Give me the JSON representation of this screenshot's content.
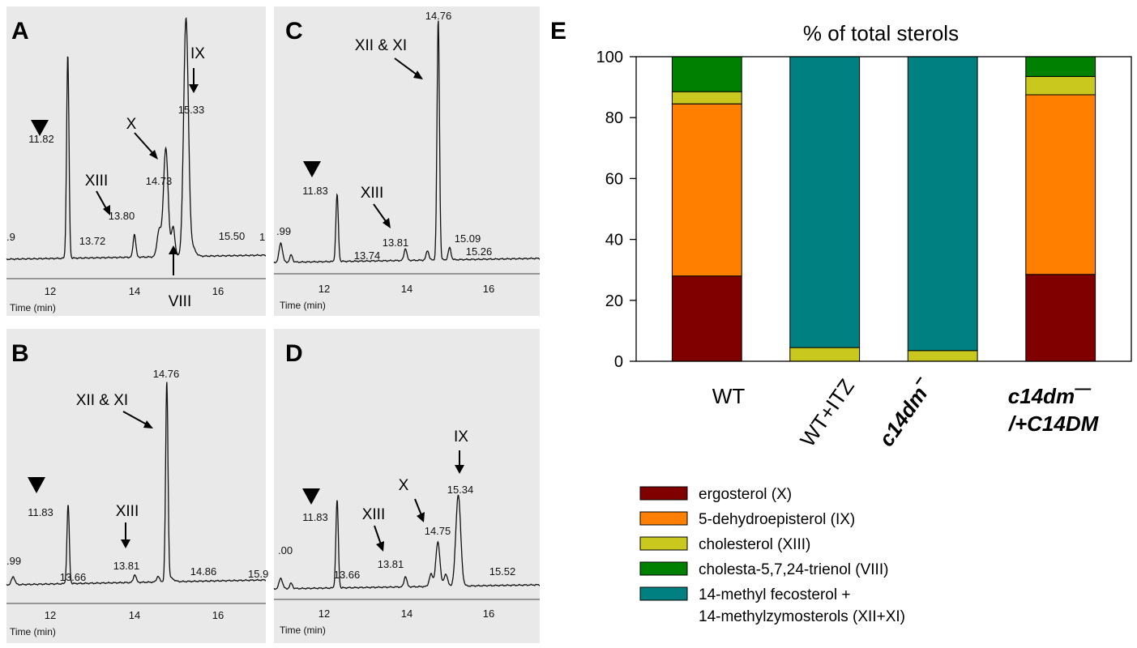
{
  "chart_data": [
    {
      "type": "line",
      "panel": "A",
      "xlabel": "Time (min)",
      "x_ticks": [
        "12",
        "14",
        "16"
      ],
      "xlim": [
        10.0,
        17.7
      ],
      "x_left_cut_label": ".9",
      "x_right_cut_label": "1",
      "peaks": [
        {
          "rt": 11.82,
          "h": 0.62,
          "w": 0.035
        },
        {
          "rt": 13.8,
          "h": 0.07,
          "w": 0.04
        },
        {
          "rt": 14.53,
          "h": 0.08,
          "w": 0.06
        },
        {
          "rt": 14.73,
          "h": 0.33,
          "w": 0.07
        },
        {
          "rt": 14.95,
          "h": 0.09,
          "w": 0.05
        },
        {
          "rt": 15.33,
          "h": 0.72,
          "w": 0.07
        },
        {
          "rt": 15.5,
          "h": 0.03,
          "w": 0.1
        }
      ],
      "peak_labels": [
        "11.82",
        "13.72",
        "13.80",
        "14.73",
        "15.33",
        "15.50"
      ],
      "annotations": [
        "XIII",
        "X",
        "IX",
        "VIII"
      ]
    },
    {
      "type": "line",
      "panel": "B",
      "xlabel": "Time (min)",
      "x_ticks": [
        "12",
        "14",
        "16"
      ],
      "xlim": [
        10.0,
        17.7
      ],
      "x_left_cut_label": ".99",
      "x_right_cut_label": "15.9",
      "peaks": [
        {
          "rt": 10.2,
          "h": 0.04,
          "w": 0.05
        },
        {
          "rt": 11.83,
          "h": 0.4,
          "w": 0.035
        },
        {
          "rt": 13.81,
          "h": 0.04,
          "w": 0.04
        },
        {
          "rt": 14.5,
          "h": 0.03,
          "w": 0.04
        },
        {
          "rt": 14.76,
          "h": 1.0,
          "w": 0.035
        },
        {
          "rt": 14.86,
          "h": 0.02,
          "w": 0.1
        }
      ],
      "peak_labels": [
        "11.83",
        "13.66",
        "13.81",
        "14.76",
        "14.86",
        "15.9"
      ],
      "annotations": [
        "XII & XI",
        "XIII"
      ]
    },
    {
      "type": "line",
      "panel": "C",
      "xlabel": "Time (min)",
      "x_ticks": [
        "12",
        "14",
        "16"
      ],
      "xlim": [
        10.0,
        17.7
      ],
      "x_left_cut_label": ".99",
      "peaks": [
        {
          "rt": 10.2,
          "h": 0.08,
          "w": 0.05
        },
        {
          "rt": 10.5,
          "h": 0.03,
          "w": 0.04
        },
        {
          "rt": 11.83,
          "h": 0.28,
          "w": 0.035
        },
        {
          "rt": 13.81,
          "h": 0.05,
          "w": 0.04
        },
        {
          "rt": 14.45,
          "h": 0.04,
          "w": 0.04
        },
        {
          "rt": 14.76,
          "h": 1.0,
          "w": 0.035
        },
        {
          "rt": 15.09,
          "h": 0.05,
          "w": 0.04
        }
      ],
      "peak_labels": [
        "11.83",
        "13.74",
        "13.81",
        "14.76",
        "15.09",
        "15.26"
      ],
      "annotations": [
        "XII & XI",
        "XIII"
      ]
    },
    {
      "type": "line",
      "panel": "D",
      "xlabel": "Time (min)",
      "x_ticks": [
        "12",
        "14",
        "16"
      ],
      "xlim": [
        10.0,
        17.7
      ],
      "x_left_cut_label": ".00",
      "peaks": [
        {
          "rt": 10.2,
          "h": 0.06,
          "w": 0.05
        },
        {
          "rt": 10.5,
          "h": 0.03,
          "w": 0.04
        },
        {
          "rt": 11.83,
          "h": 0.5,
          "w": 0.035
        },
        {
          "rt": 13.81,
          "h": 0.06,
          "w": 0.04
        },
        {
          "rt": 14.55,
          "h": 0.07,
          "w": 0.05
        },
        {
          "rt": 14.75,
          "h": 0.25,
          "w": 0.06
        },
        {
          "rt": 14.98,
          "h": 0.07,
          "w": 0.05
        },
        {
          "rt": 15.34,
          "h": 0.52,
          "w": 0.07
        }
      ],
      "peak_labels": [
        "11.83",
        "13.66",
        "13.81",
        "14.75",
        "15.34",
        "15.52"
      ],
      "annotations": [
        "XIII",
        "X",
        "IX"
      ]
    },
    {
      "type": "bar",
      "panel": "E",
      "stacked": true,
      "title": "% of total sterols",
      "ylim": [
        0,
        100
      ],
      "y_ticks": [
        0,
        20,
        40,
        60,
        80,
        100
      ],
      "grid": false,
      "legend_placement": "bottom",
      "categories": [
        {
          "label": "WT"
        },
        {
          "label": "WT+ITZ"
        },
        {
          "label": "c14dm",
          "suffix": "−"
        },
        {
          "label": "c14dm",
          "suffix": "—",
          "line2": "/+C14DM"
        }
      ],
      "series": [
        {
          "name": "ergosterol (X)",
          "color": "#800000",
          "values": [
            28,
            0,
            0,
            28.5
          ]
        },
        {
          "name": "5-dehydroepisterol (IX)",
          "color": "#ff8000",
          "values": [
            56.5,
            0,
            0,
            59
          ]
        },
        {
          "name": "cholesterol (XIII)",
          "color": "#c8c81e",
          "values": [
            4,
            4.5,
            3.5,
            6
          ]
        },
        {
          "name": "cholesta-5,7,24-trienol (VIII)",
          "color": "#008000",
          "values": [
            11.5,
            0,
            0,
            6.5
          ]
        },
        {
          "name": "14-methyl fecosterol +",
          "name_line2": "14-methylzymosterols (XII+XI)",
          "color": "#008080",
          "values": [
            0,
            95.5,
            96.5,
            0
          ]
        }
      ]
    }
  ]
}
